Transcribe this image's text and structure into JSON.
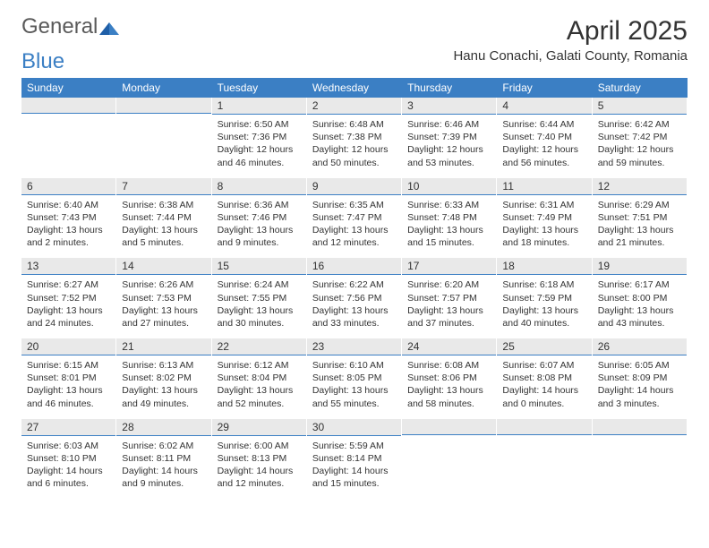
{
  "logo": {
    "text1": "General",
    "text2": "Blue"
  },
  "title": "April 2025",
  "location": "Hanu Conachi, Galati County, Romania",
  "colors": {
    "header_bg": "#3b7fc4",
    "header_fg": "#ffffff",
    "daybar_bg": "#e9e9e9",
    "rule": "#3b7fc4",
    "text": "#333333",
    "background": "#ffffff"
  },
  "typography": {
    "title_fontsize": 30,
    "location_fontsize": 15,
    "dayheader_fontsize": 12,
    "daynum_fontsize": 12,
    "body_fontsize": 10.5
  },
  "day_names": [
    "Sunday",
    "Monday",
    "Tuesday",
    "Wednesday",
    "Thursday",
    "Friday",
    "Saturday"
  ],
  "weeks": [
    [
      null,
      null,
      {
        "n": "1",
        "sunrise": "Sunrise: 6:50 AM",
        "sunset": "Sunset: 7:36 PM",
        "daylight1": "Daylight: 12 hours",
        "daylight2": "and 46 minutes."
      },
      {
        "n": "2",
        "sunrise": "Sunrise: 6:48 AM",
        "sunset": "Sunset: 7:38 PM",
        "daylight1": "Daylight: 12 hours",
        "daylight2": "and 50 minutes."
      },
      {
        "n": "3",
        "sunrise": "Sunrise: 6:46 AM",
        "sunset": "Sunset: 7:39 PM",
        "daylight1": "Daylight: 12 hours",
        "daylight2": "and 53 minutes."
      },
      {
        "n": "4",
        "sunrise": "Sunrise: 6:44 AM",
        "sunset": "Sunset: 7:40 PM",
        "daylight1": "Daylight: 12 hours",
        "daylight2": "and 56 minutes."
      },
      {
        "n": "5",
        "sunrise": "Sunrise: 6:42 AM",
        "sunset": "Sunset: 7:42 PM",
        "daylight1": "Daylight: 12 hours",
        "daylight2": "and 59 minutes."
      }
    ],
    [
      {
        "n": "6",
        "sunrise": "Sunrise: 6:40 AM",
        "sunset": "Sunset: 7:43 PM",
        "daylight1": "Daylight: 13 hours",
        "daylight2": "and 2 minutes."
      },
      {
        "n": "7",
        "sunrise": "Sunrise: 6:38 AM",
        "sunset": "Sunset: 7:44 PM",
        "daylight1": "Daylight: 13 hours",
        "daylight2": "and 5 minutes."
      },
      {
        "n": "8",
        "sunrise": "Sunrise: 6:36 AM",
        "sunset": "Sunset: 7:46 PM",
        "daylight1": "Daylight: 13 hours",
        "daylight2": "and 9 minutes."
      },
      {
        "n": "9",
        "sunrise": "Sunrise: 6:35 AM",
        "sunset": "Sunset: 7:47 PM",
        "daylight1": "Daylight: 13 hours",
        "daylight2": "and 12 minutes."
      },
      {
        "n": "10",
        "sunrise": "Sunrise: 6:33 AM",
        "sunset": "Sunset: 7:48 PM",
        "daylight1": "Daylight: 13 hours",
        "daylight2": "and 15 minutes."
      },
      {
        "n": "11",
        "sunrise": "Sunrise: 6:31 AM",
        "sunset": "Sunset: 7:49 PM",
        "daylight1": "Daylight: 13 hours",
        "daylight2": "and 18 minutes."
      },
      {
        "n": "12",
        "sunrise": "Sunrise: 6:29 AM",
        "sunset": "Sunset: 7:51 PM",
        "daylight1": "Daylight: 13 hours",
        "daylight2": "and 21 minutes."
      }
    ],
    [
      {
        "n": "13",
        "sunrise": "Sunrise: 6:27 AM",
        "sunset": "Sunset: 7:52 PM",
        "daylight1": "Daylight: 13 hours",
        "daylight2": "and 24 minutes."
      },
      {
        "n": "14",
        "sunrise": "Sunrise: 6:26 AM",
        "sunset": "Sunset: 7:53 PM",
        "daylight1": "Daylight: 13 hours",
        "daylight2": "and 27 minutes."
      },
      {
        "n": "15",
        "sunrise": "Sunrise: 6:24 AM",
        "sunset": "Sunset: 7:55 PM",
        "daylight1": "Daylight: 13 hours",
        "daylight2": "and 30 minutes."
      },
      {
        "n": "16",
        "sunrise": "Sunrise: 6:22 AM",
        "sunset": "Sunset: 7:56 PM",
        "daylight1": "Daylight: 13 hours",
        "daylight2": "and 33 minutes."
      },
      {
        "n": "17",
        "sunrise": "Sunrise: 6:20 AM",
        "sunset": "Sunset: 7:57 PM",
        "daylight1": "Daylight: 13 hours",
        "daylight2": "and 37 minutes."
      },
      {
        "n": "18",
        "sunrise": "Sunrise: 6:18 AM",
        "sunset": "Sunset: 7:59 PM",
        "daylight1": "Daylight: 13 hours",
        "daylight2": "and 40 minutes."
      },
      {
        "n": "19",
        "sunrise": "Sunrise: 6:17 AM",
        "sunset": "Sunset: 8:00 PM",
        "daylight1": "Daylight: 13 hours",
        "daylight2": "and 43 minutes."
      }
    ],
    [
      {
        "n": "20",
        "sunrise": "Sunrise: 6:15 AM",
        "sunset": "Sunset: 8:01 PM",
        "daylight1": "Daylight: 13 hours",
        "daylight2": "and 46 minutes."
      },
      {
        "n": "21",
        "sunrise": "Sunrise: 6:13 AM",
        "sunset": "Sunset: 8:02 PM",
        "daylight1": "Daylight: 13 hours",
        "daylight2": "and 49 minutes."
      },
      {
        "n": "22",
        "sunrise": "Sunrise: 6:12 AM",
        "sunset": "Sunset: 8:04 PM",
        "daylight1": "Daylight: 13 hours",
        "daylight2": "and 52 minutes."
      },
      {
        "n": "23",
        "sunrise": "Sunrise: 6:10 AM",
        "sunset": "Sunset: 8:05 PM",
        "daylight1": "Daylight: 13 hours",
        "daylight2": "and 55 minutes."
      },
      {
        "n": "24",
        "sunrise": "Sunrise: 6:08 AM",
        "sunset": "Sunset: 8:06 PM",
        "daylight1": "Daylight: 13 hours",
        "daylight2": "and 58 minutes."
      },
      {
        "n": "25",
        "sunrise": "Sunrise: 6:07 AM",
        "sunset": "Sunset: 8:08 PM",
        "daylight1": "Daylight: 14 hours",
        "daylight2": "and 0 minutes."
      },
      {
        "n": "26",
        "sunrise": "Sunrise: 6:05 AM",
        "sunset": "Sunset: 8:09 PM",
        "daylight1": "Daylight: 14 hours",
        "daylight2": "and 3 minutes."
      }
    ],
    [
      {
        "n": "27",
        "sunrise": "Sunrise: 6:03 AM",
        "sunset": "Sunset: 8:10 PM",
        "daylight1": "Daylight: 14 hours",
        "daylight2": "and 6 minutes."
      },
      {
        "n": "28",
        "sunrise": "Sunrise: 6:02 AM",
        "sunset": "Sunset: 8:11 PM",
        "daylight1": "Daylight: 14 hours",
        "daylight2": "and 9 minutes."
      },
      {
        "n": "29",
        "sunrise": "Sunrise: 6:00 AM",
        "sunset": "Sunset: 8:13 PM",
        "daylight1": "Daylight: 14 hours",
        "daylight2": "and 12 minutes."
      },
      {
        "n": "30",
        "sunrise": "Sunrise: 5:59 AM",
        "sunset": "Sunset: 8:14 PM",
        "daylight1": "Daylight: 14 hours",
        "daylight2": "and 15 minutes."
      },
      null,
      null,
      null
    ]
  ]
}
